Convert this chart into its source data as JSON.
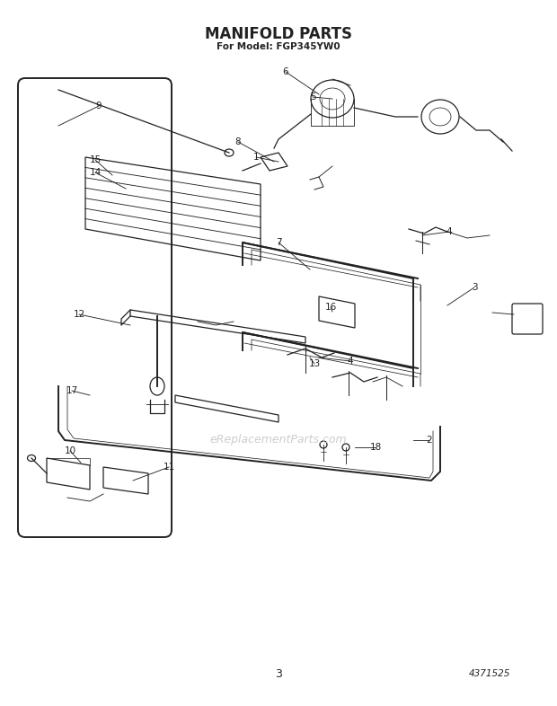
{
  "title": "MANIFOLD PARTS",
  "subtitle": "For Model: FGP345YW0",
  "page_num": "3",
  "part_num": "4371525",
  "bg_color": "#ffffff",
  "line_color": "#222222",
  "title_fontsize": 12,
  "subtitle_fontsize": 7.5,
  "label_fontsize": 7.5,
  "footer_fontsize": 8,
  "watermark": "eReplacementParts.com",
  "watermark_color": "#c8c8c8"
}
